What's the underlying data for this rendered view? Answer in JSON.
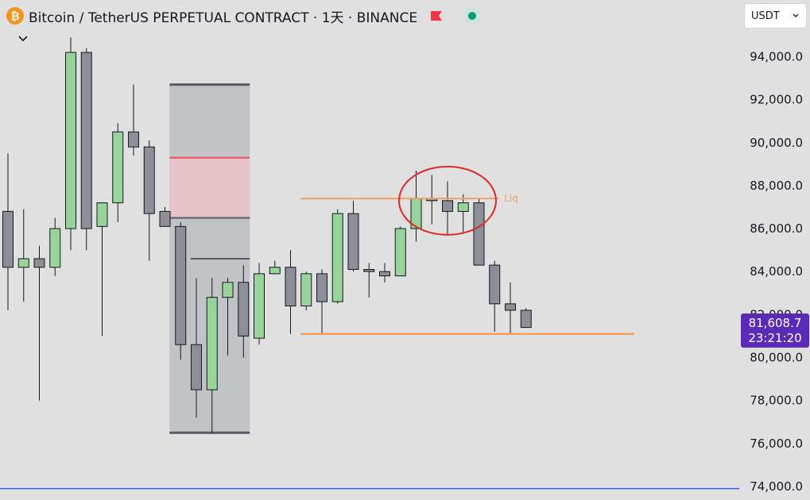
{
  "header": {
    "coin_icon_label": "₿",
    "title": "Bitcoin / TetherUS PERPETUAL CONTRACT · 1天 · BINANCE",
    "flag_color": "#f23645"
  },
  "currency_select": {
    "value": "USDT"
  },
  "price_tag": {
    "price": "81,608.7",
    "countdown": "23:21:20"
  },
  "colors": {
    "up": "#98d49a",
    "down": "#8c8e98",
    "outline": "#131722",
    "annotation": "#f2a060",
    "circle": "#e02626",
    "zone": "#c2c3c7",
    "zone_red": "#e5c3c8",
    "zone_line": "#555a66",
    "zone_red_line": "#e8505b",
    "bottom_line": "#2962ff"
  },
  "chart_data": {
    "type": "candlestick",
    "y_ticks": [
      94000,
      92000,
      90000,
      88000,
      86000,
      84000,
      82000,
      80000,
      78000,
      76000,
      74000
    ],
    "y_tick_labels": [
      "94,000.0",
      "92,000.0",
      "90,000.0",
      "88,000.0",
      "86,000.0",
      "84,000.0",
      "82,000.0",
      "80,000.0",
      "78,000.0",
      "76,000.0",
      "74,000.0"
    ],
    "ylim": [
      73800,
      95800
    ],
    "candles": [
      {
        "o": 86800,
        "h": 89500,
        "l": 82200,
        "c": 84200
      },
      {
        "o": 84200,
        "h": 86900,
        "l": 82600,
        "c": 84600
      },
      {
        "o": 84600,
        "h": 85200,
        "l": 78000,
        "c": 84200
      },
      {
        "o": 84200,
        "h": 86500,
        "l": 83800,
        "c": 86000
      },
      {
        "o": 86000,
        "h": 94900,
        "l": 85000,
        "c": 94200
      },
      {
        "o": 94200,
        "h": 94400,
        "l": 85000,
        "c": 86000
      },
      {
        "o": 86100,
        "h": 87200,
        "l": 81000,
        "c": 87200
      },
      {
        "o": 87200,
        "h": 90900,
        "l": 86300,
        "c": 90500
      },
      {
        "o": 90500,
        "h": 92700,
        "l": 89400,
        "c": 89800
      },
      {
        "o": 89800,
        "h": 90100,
        "l": 84500,
        "c": 86700
      },
      {
        "o": 86800,
        "h": 87000,
        "l": 86100,
        "c": 86100
      },
      {
        "o": 86100,
        "h": 86300,
        "l": 79900,
        "c": 80600
      },
      {
        "o": 80600,
        "h": 83700,
        "l": 77200,
        "c": 78500
      },
      {
        "o": 78500,
        "h": 83700,
        "l": 76500,
        "c": 82800
      },
      {
        "o": 82800,
        "h": 83700,
        "l": 80100,
        "c": 83500
      },
      {
        "o": 83500,
        "h": 84300,
        "l": 80000,
        "c": 81000
      },
      {
        "o": 80900,
        "h": 84400,
        "l": 80600,
        "c": 83900
      },
      {
        "o": 83900,
        "h": 84500,
        "l": 83900,
        "c": 84200
      },
      {
        "o": 84200,
        "h": 85000,
        "l": 81100,
        "c": 82400
      },
      {
        "o": 82400,
        "h": 84000,
        "l": 82200,
        "c": 83900
      },
      {
        "o": 83900,
        "h": 84100,
        "l": 81100,
        "c": 82600
      },
      {
        "o": 82600,
        "h": 86900,
        "l": 82500,
        "c": 86700
      },
      {
        "o": 86700,
        "h": 87300,
        "l": 84000,
        "c": 84100
      },
      {
        "o": 84100,
        "h": 84400,
        "l": 82800,
        "c": 84000
      },
      {
        "o": 84000,
        "h": 84400,
        "l": 83500,
        "c": 83800
      },
      {
        "o": 83800,
        "h": 86100,
        "l": 83800,
        "c": 86000
      },
      {
        "o": 86000,
        "h": 88700,
        "l": 85400,
        "c": 87400
      },
      {
        "o": 87400,
        "h": 88500,
        "l": 86200,
        "c": 87300
      },
      {
        "o": 87300,
        "h": 88200,
        "l": 85700,
        "c": 86800
      },
      {
        "o": 86800,
        "h": 87600,
        "l": 85800,
        "c": 87200
      },
      {
        "o": 87200,
        "h": 87400,
        "l": 84300,
        "c": 84300
      },
      {
        "o": 84300,
        "h": 84500,
        "l": 81200,
        "c": 82500
      },
      {
        "o": 82500,
        "h": 83500,
        "l": 81100,
        "c": 82200
      },
      {
        "o": 82200,
        "h": 82300,
        "l": 81400,
        "c": 81400
      }
    ],
    "annotations": {
      "liq_line": {
        "price": 87400,
        "label": "Liq"
      },
      "support_line": {
        "price": 81100
      },
      "zone": {
        "top": 92700,
        "bottom": 76500,
        "red_top": 89300,
        "red_bottom": 86500,
        "mid_line": 84600
      },
      "bottom_blue_line": {
        "price": 73900
      }
    }
  }
}
